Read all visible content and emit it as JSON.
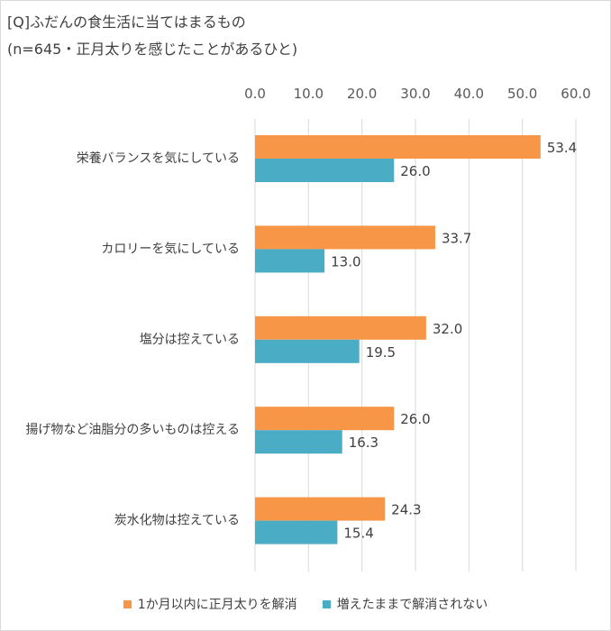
{
  "title_lines": [
    "[Q]ふだんの食生活に当てはまるもの",
    "(n=645・正月太りを感じたことがあるひと)"
  ],
  "chart_data": {
    "type": "bar",
    "orientation": "horizontal",
    "categories": [
      "栄養バランスを気にしている",
      "カロリーを気にしている",
      "塩分は控えている",
      "揚げ物など油脂分の多いものは控える",
      "炭水化物は控えている"
    ],
    "series": [
      {
        "name": "1か月以内に正月太りを解消",
        "values": [
          53.4,
          33.7,
          32.0,
          26.0,
          24.3
        ],
        "labels": [
          "53.4",
          "33.7",
          "32.0",
          "26.0",
          "24.3"
        ],
        "color": "#f79646"
      },
      {
        "name": "増えたままで解消されない",
        "values": [
          26.0,
          13.0,
          19.5,
          16.3,
          15.4
        ],
        "labels": [
          "26.0",
          "13.0",
          "19.5",
          "16.3",
          "15.4"
        ],
        "color": "#4bacc6"
      }
    ],
    "xlim": [
      0,
      60
    ],
    "ticks": [
      "0.0",
      "10.0",
      "20.0",
      "30.0",
      "40.0",
      "50.0",
      "60.0"
    ],
    "grid": true,
    "legend_position": "bottom"
  }
}
